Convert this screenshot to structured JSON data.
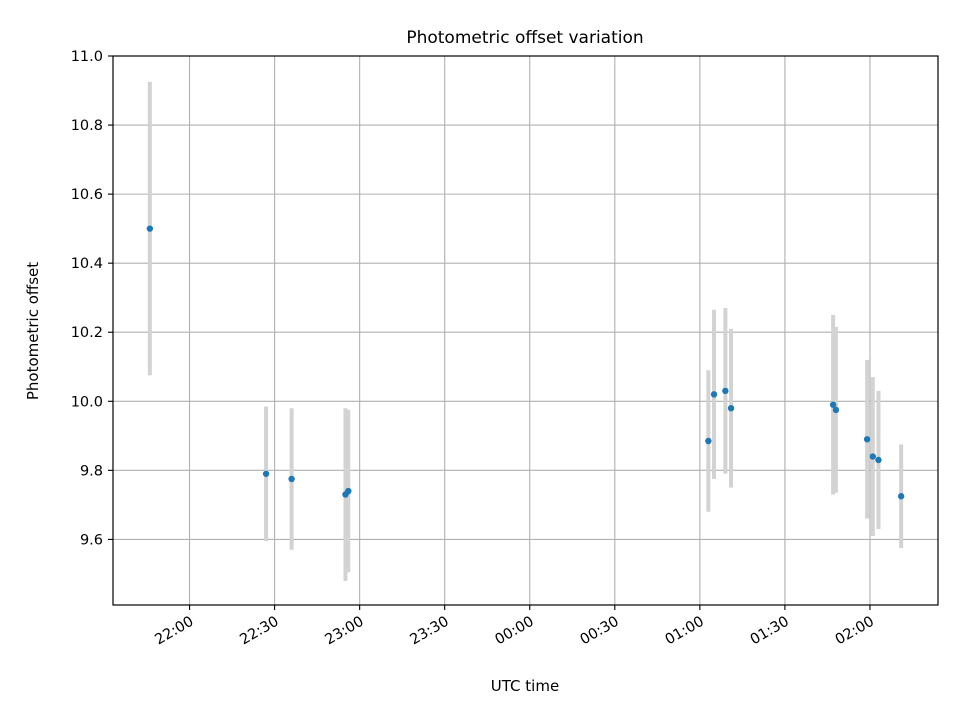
{
  "chart_data": {
    "type": "scatter",
    "title": "Photometric offset variation",
    "xlabel": "UTC time",
    "ylabel": "Photometric offset",
    "x_ticks": [
      "22:00",
      "22:30",
      "23:00",
      "23:30",
      "00:00",
      "00:30",
      "01:00",
      "01:30",
      "02:00"
    ],
    "y_ticks": [
      "9.6",
      "9.8",
      "10.0",
      "10.2",
      "10.4",
      "10.6",
      "10.8",
      "11.0"
    ],
    "ylim": [
      9.41,
      11.0
    ],
    "xlim": [
      "21:33",
      "02:24"
    ],
    "grid": true,
    "colors": {
      "points": "#1f77b4",
      "errorbars": "#d3d3d3"
    },
    "points": [
      {
        "x": "21:46",
        "y": 10.5,
        "err": 0.425
      },
      {
        "x": "22:27",
        "y": 9.79,
        "err": 0.195
      },
      {
        "x": "22:36",
        "y": 9.775,
        "err": 0.205
      },
      {
        "x": "22:55",
        "y": 9.73,
        "err": 0.25
      },
      {
        "x": "22:56",
        "y": 9.74,
        "err": 0.235
      },
      {
        "x": "01:03",
        "y": 9.885,
        "err": 0.205
      },
      {
        "x": "01:05",
        "y": 10.02,
        "err": 0.245
      },
      {
        "x": "01:09",
        "y": 10.03,
        "err": 0.24
      },
      {
        "x": "01:11",
        "y": 9.98,
        "err": 0.23
      },
      {
        "x": "01:47",
        "y": 9.99,
        "err": 0.26
      },
      {
        "x": "01:48",
        "y": 9.975,
        "err": 0.24
      },
      {
        "x": "01:59",
        "y": 9.89,
        "err": 0.23
      },
      {
        "x": "02:01",
        "y": 9.84,
        "err": 0.23
      },
      {
        "x": "02:03",
        "y": 9.83,
        "err": 0.2
      },
      {
        "x": "02:11",
        "y": 9.725,
        "err": 0.15
      }
    ]
  }
}
